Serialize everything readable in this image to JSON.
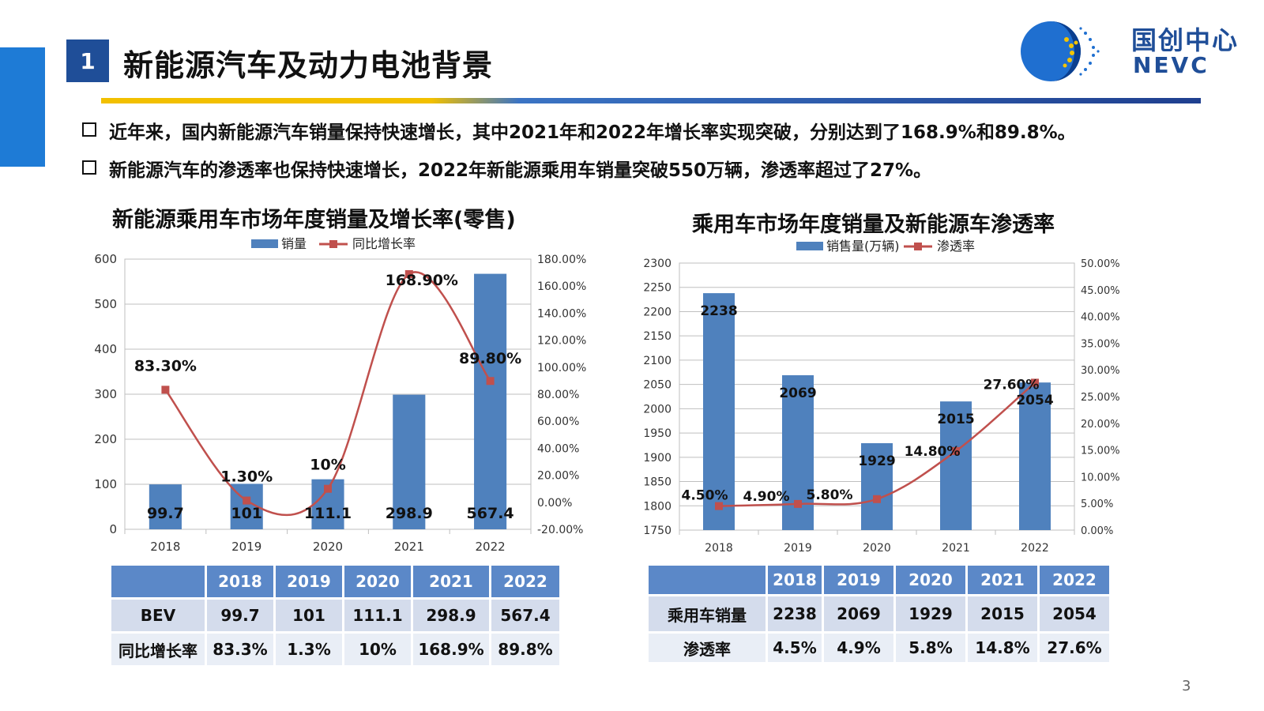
{
  "header": {
    "slide_num": "1",
    "title": "新能源汽车及动力电池背景",
    "logo_cn": "国创中心",
    "logo_en": "NEVC"
  },
  "bullets": [
    "近年来，国内新能源汽车销量保持快速增长，其中2021年和2022年增长率实现突破，分别达到了168.9%和89.8%。",
    "新能源汽车的渗透率也保持快速增长，2022年新能源乘用车销量突破550万辆，渗透率超过了27%。"
  ],
  "colors": {
    "bar": "#4f81bd",
    "line": "#c0504d",
    "header": "#5b88c8",
    "accent": "#1e7bd6"
  },
  "chart_data": [
    {
      "type": "bar",
      "title": "新能源乘用车市场年度销量及增长率(零售)",
      "categories": [
        "2018",
        "2019",
        "2020",
        "2021",
        "2022"
      ],
      "series": [
        {
          "name": "销量",
          "kind": "bar",
          "axis": "left",
          "values": [
            99.7,
            101,
            111.1,
            298.9,
            567.4
          ],
          "labels": [
            "99.7",
            "101",
            "111.1",
            "298.9",
            "567.4"
          ]
        },
        {
          "name": "同比增长率",
          "kind": "line",
          "axis": "right",
          "values": [
            83.3,
            1.3,
            10,
            168.9,
            89.8
          ],
          "labels": [
            "83.30%",
            "1.30%",
            "10%",
            "168.90%",
            "89.80%"
          ]
        }
      ],
      "ylim": [
        0,
        600
      ],
      "yticks": [
        "0",
        "100",
        "200",
        "300",
        "400",
        "500",
        "600"
      ],
      "y2lim": [
        -20,
        180
      ],
      "y2ticks": [
        "-20.00%",
        "0.00%",
        "20.00%",
        "40.00%",
        "60.00%",
        "80.00%",
        "100.00%",
        "120.00%",
        "140.00%",
        "160.00%",
        "180.00%"
      ],
      "legend": "top",
      "grid": true
    },
    {
      "type": "bar",
      "title": "乘用车市场年度销量及新能源车渗透率",
      "categories": [
        "2018",
        "2019",
        "2020",
        "2021",
        "2022"
      ],
      "series": [
        {
          "name": "销售量(万辆)",
          "kind": "bar",
          "axis": "left",
          "values": [
            2238,
            2069,
            1929,
            2015,
            2054
          ],
          "labels": [
            "2238",
            "2069",
            "1929",
            "2015",
            "2054"
          ]
        },
        {
          "name": "渗透率",
          "kind": "line",
          "axis": "right",
          "values": [
            4.5,
            4.9,
            5.8,
            14.8,
            27.6
          ],
          "labels": [
            "4.50%",
            "4.90%",
            "5.80%",
            "14.80%",
            "27.60%"
          ]
        }
      ],
      "ylim": [
        1750,
        2300
      ],
      "yticks": [
        "1750",
        "1800",
        "1850",
        "1900",
        "1950",
        "2000",
        "2050",
        "2100",
        "2150",
        "2200",
        "2250",
        "2300"
      ],
      "y2lim": [
        0,
        50
      ],
      "y2ticks": [
        "0.00%",
        "5.00%",
        "10.00%",
        "15.00%",
        "20.00%",
        "25.00%",
        "30.00%",
        "35.00%",
        "40.00%",
        "45.00%",
        "50.00%"
      ],
      "legend": "top",
      "grid": true
    }
  ],
  "table_left": {
    "header": [
      "",
      "2018",
      "2019",
      "2020",
      "2021",
      "2022"
    ],
    "rows": [
      [
        "BEV",
        "99.7",
        "101",
        "111.1",
        "298.9",
        "567.4"
      ],
      [
        "同比增长率",
        "83.3%",
        "1.3%",
        "10%",
        "168.9%",
        "89.8%"
      ]
    ]
  },
  "table_right": {
    "header": [
      "",
      "2018",
      "2019",
      "2020",
      "2021",
      "2022"
    ],
    "rows": [
      [
        "乘用车销量",
        "2238",
        "2069",
        "1929",
        "2015",
        "2054"
      ],
      [
        "渗透率",
        "4.5%",
        "4.9%",
        "5.8%",
        "14.8%",
        "27.6%"
      ]
    ]
  },
  "page_number": "3"
}
